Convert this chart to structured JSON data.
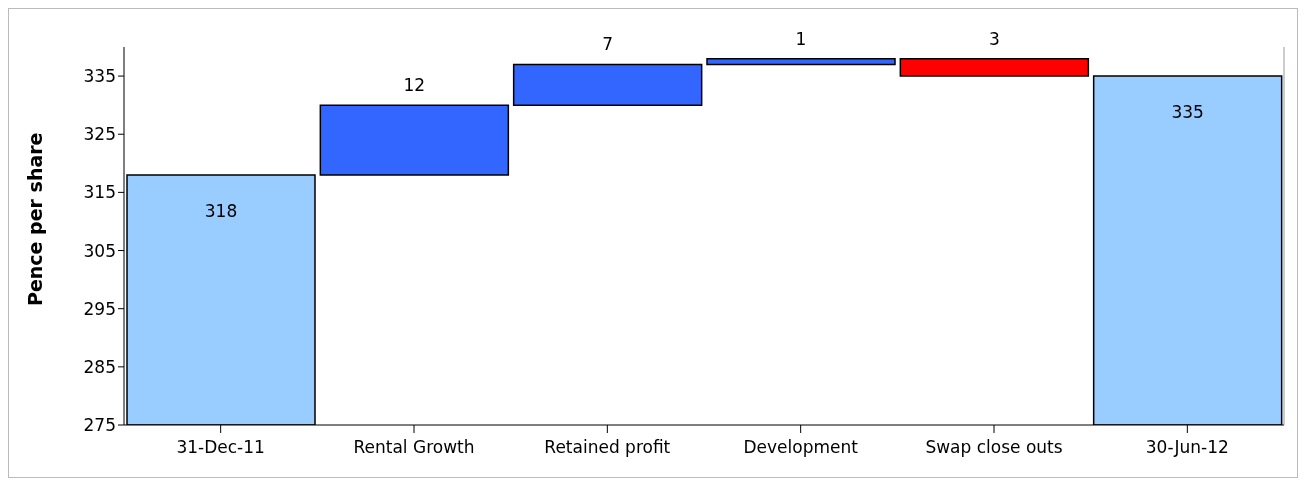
{
  "chart_data": {
    "type": "bar",
    "ylabel": "Pence per share",
    "categories": [
      "31-Dec-11",
      "Rental Growth",
      "Retained profit",
      "Development",
      "Swap close outs",
      "30-Jun-12"
    ],
    "base": [
      275,
      318,
      330,
      337,
      338,
      275
    ],
    "values": [
      43,
      12,
      7,
      1,
      -3,
      60
    ],
    "value_labels": [
      "318",
      "12",
      "7",
      "1",
      "3",
      "335"
    ],
    "colors": [
      "#99ccff",
      "#3366ff",
      "#3366ff",
      "#3366ff",
      "#ff0000",
      "#99ccff"
    ],
    "ylim": [
      275,
      340
    ],
    "yticks": [
      275,
      285,
      295,
      305,
      315,
      325,
      335
    ],
    "grid": false
  }
}
